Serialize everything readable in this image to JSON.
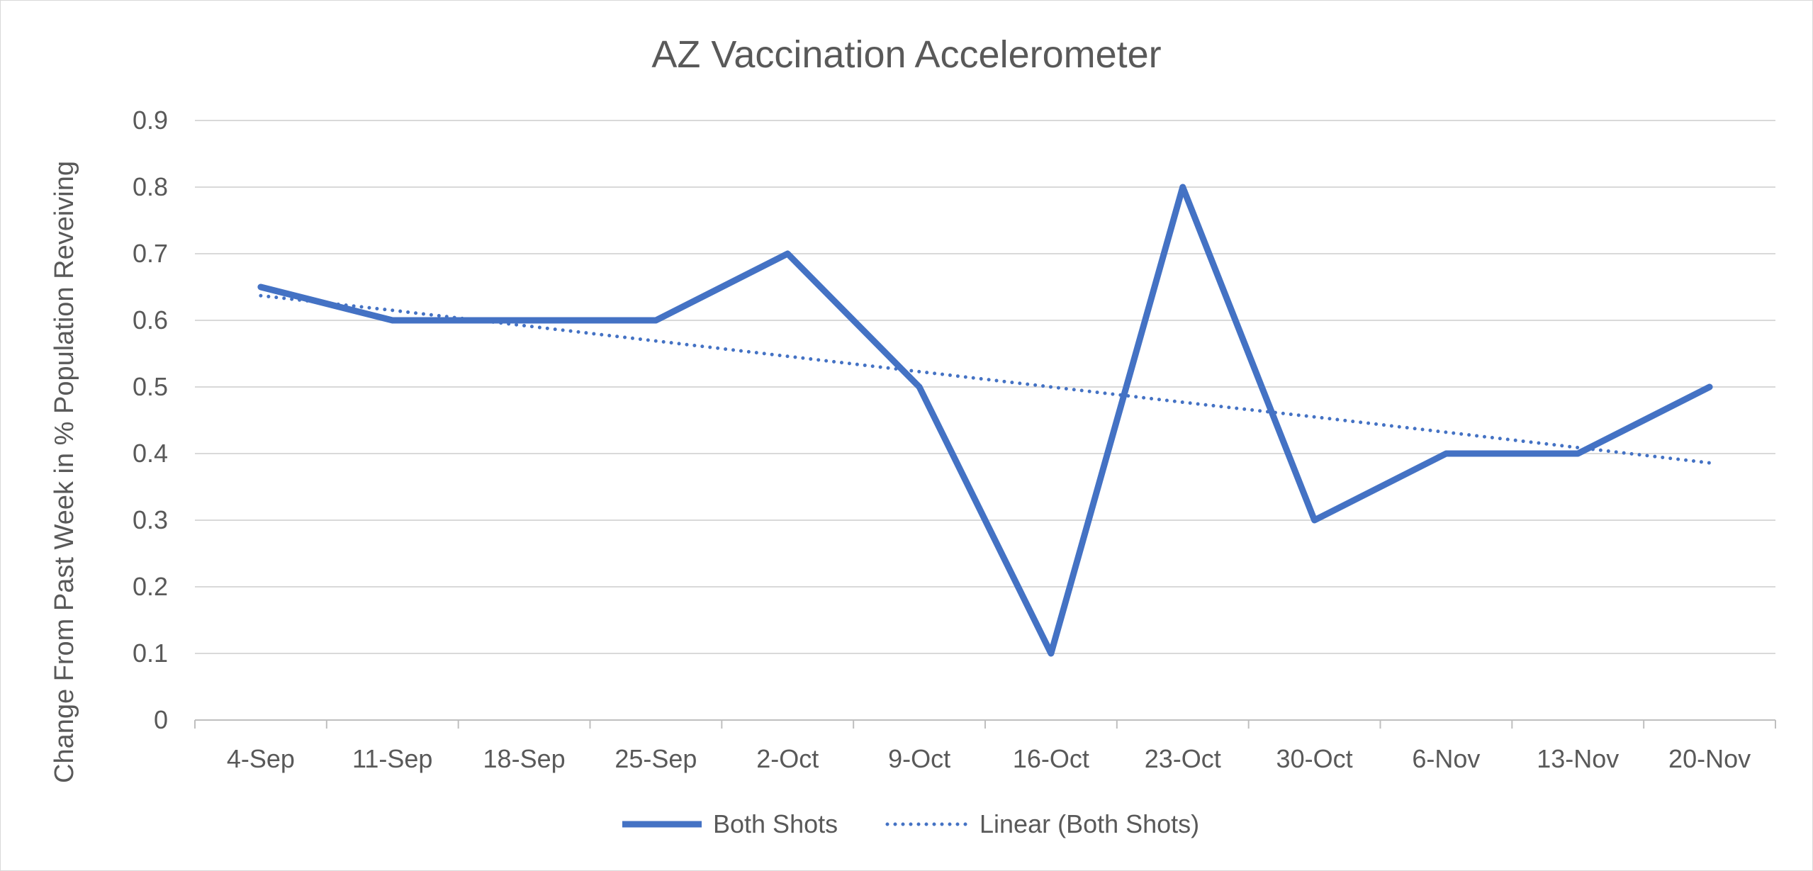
{
  "chart_data": {
    "type": "line",
    "title": "AZ Vaccination Accelerometer",
    "xlabel": "",
    "ylabel": "Change  From Past Week in % Population Reveiving",
    "categories": [
      "4-Sep",
      "11-Sep",
      "18-Sep",
      "25-Sep",
      "2-Oct",
      "9-Oct",
      "16-Oct",
      "23-Oct",
      "30-Oct",
      "6-Nov",
      "13-Nov",
      "20-Nov"
    ],
    "ylim": [
      0,
      0.9
    ],
    "yticks": [
      "0",
      "0.1",
      "0.2",
      "0.3",
      "0.4",
      "0.5",
      "0.6",
      "0.7",
      "0.8",
      "0.9"
    ],
    "grid": true,
    "legend_position": "bottom",
    "series": [
      {
        "name": "Both Shots",
        "style": "solid",
        "color": "#4472c4",
        "values": [
          0.65,
          0.6,
          0.6,
          0.6,
          0.7,
          0.5,
          0.1,
          0.8,
          0.3,
          0.4,
          0.4,
          0.5
        ]
      },
      {
        "name": "Linear (Both Shots)",
        "style": "dotted",
        "color": "#4472c4",
        "values": [
          0.637,
          0.615,
          0.592,
          0.569,
          0.546,
          0.523,
          0.5,
          0.477,
          0.455,
          0.432,
          0.409,
          0.386
        ]
      }
    ]
  }
}
